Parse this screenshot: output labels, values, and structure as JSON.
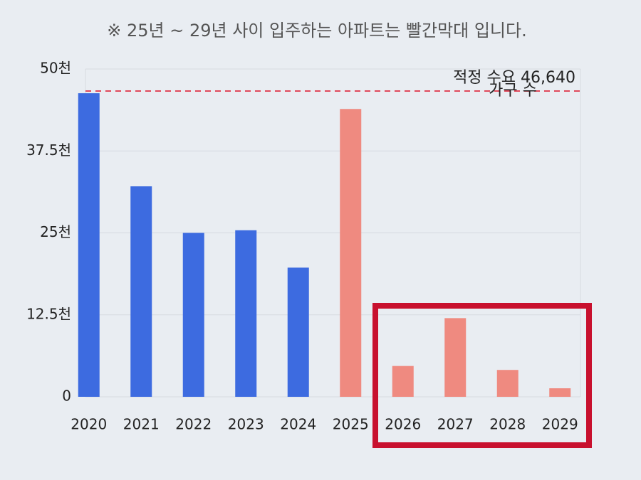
{
  "chart_data": {
    "type": "bar",
    "title": "※ 25년 ~ 29년 사이 입주하는 아파트는 빨간막대 입니다.",
    "categories": [
      "2020",
      "2021",
      "2022",
      "2023",
      "2024",
      "2025",
      "2026",
      "2027",
      "2028",
      "2029"
    ],
    "values": [
      46300,
      32100,
      25000,
      25400,
      19700,
      43900,
      4700,
      12000,
      4100,
      1300
    ],
    "colors": [
      "#3d6be0",
      "#3d6be0",
      "#3d6be0",
      "#3d6be0",
      "#3d6be0",
      "#ef8a80",
      "#ef8a80",
      "#ef8a80",
      "#ef8a80",
      "#ef8a80"
    ],
    "ylim": [
      0,
      50000
    ],
    "yticks": [
      0,
      {
        "value": 12500,
        "label": "12.5천"
      },
      {
        "value": 25000,
        "label": "25천"
      },
      {
        "value": 37500,
        "label": "37.5천"
      },
      {
        "value": 50000,
        "label": "50천"
      }
    ],
    "grid": true,
    "reference_line": {
      "value": 46640,
      "label": "적정 수요 46,640",
      "note": "가구 수",
      "color": "#e0485a"
    }
  }
}
